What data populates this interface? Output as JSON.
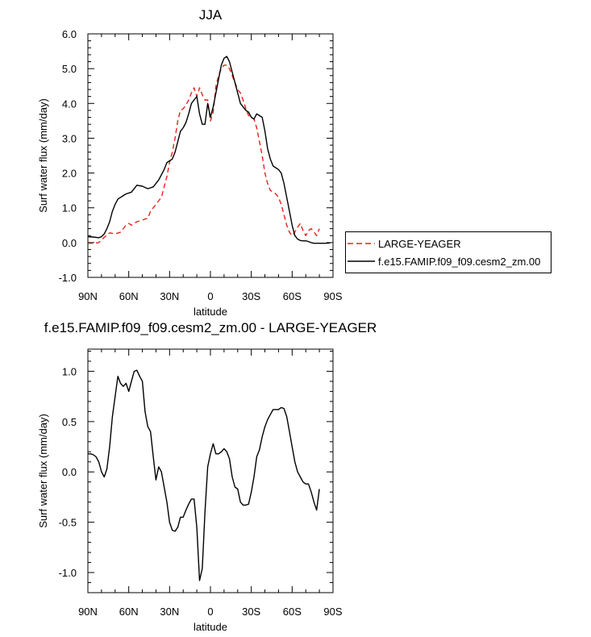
{
  "chart_data": [
    {
      "type": "line",
      "title": "JJA",
      "xlabel": "latitude",
      "ylabel": "Surf water flux (mm/day)",
      "xlim": [
        90,
        -90
      ],
      "ylim": [
        -1.0,
        6.0
      ],
      "x_ticks": [
        90,
        60,
        30,
        0,
        -30,
        -60,
        -90
      ],
      "x_tick_labels": [
        "90N",
        "60N",
        "30N",
        "0",
        "30S",
        "60S",
        "90S"
      ],
      "y_ticks": [
        -1.0,
        0.0,
        1.0,
        2.0,
        3.0,
        4.0,
        5.0,
        6.0
      ],
      "y_tick_labels": [
        "-1.0",
        "0.0",
        "1.0",
        "2.0",
        "3.0",
        "4.0",
        "5.0",
        "6.0"
      ],
      "legend": "right",
      "series": [
        {
          "name": "LARGE-YEAGER",
          "color": "#e8201a",
          "dash": "dashed",
          "x": [
            90,
            86,
            82,
            78,
            74,
            70,
            66,
            62,
            60,
            58,
            54,
            50,
            46,
            44,
            40,
            36,
            32,
            30,
            28,
            26,
            24,
            22,
            20,
            18,
            16,
            14,
            12,
            10,
            8,
            6,
            4,
            2,
            0,
            -2,
            -4,
            -6,
            -8,
            -10,
            -12,
            -14,
            -16,
            -18,
            -20,
            -22,
            -24,
            -26,
            -28,
            -30,
            -32,
            -34,
            -36,
            -38,
            -40,
            -42,
            -44,
            -46,
            -48,
            -50,
            -52,
            -54,
            -56,
            -58,
            -60,
            -62,
            -64,
            -66,
            -68,
            -70,
            -72,
            -74,
            -76,
            -78,
            -80
          ],
          "y": [
            -0.02,
            -0.02,
            0.0,
            0.15,
            0.28,
            0.25,
            0.3,
            0.5,
            0.55,
            0.5,
            0.6,
            0.65,
            0.7,
            0.9,
            1.1,
            1.3,
            1.9,
            2.3,
            2.6,
            3.0,
            3.5,
            3.8,
            3.85,
            3.95,
            4.1,
            4.3,
            4.45,
            4.2,
            4.45,
            4.25,
            4.1,
            4.1,
            3.5,
            3.75,
            4.5,
            4.8,
            5.0,
            5.1,
            5.1,
            5.0,
            4.8,
            4.6,
            4.4,
            4.3,
            4.1,
            3.85,
            3.65,
            3.6,
            3.55,
            3.3,
            2.9,
            2.5,
            2.0,
            1.7,
            1.5,
            1.45,
            1.4,
            1.3,
            1.1,
            0.8,
            0.5,
            0.3,
            0.2,
            0.3,
            0.45,
            0.55,
            0.35,
            0.2,
            0.35,
            0.4,
            0.3,
            0.2,
            0.4
          ]
        },
        {
          "name": "f.e15.FAMIP.f09_f09.cesm2_zm.00",
          "color": "#000000",
          "dash": "solid",
          "x": [
            90,
            86,
            82,
            80,
            78,
            76,
            74,
            72,
            70,
            68,
            66,
            64,
            62,
            58,
            54,
            50,
            46,
            42,
            38,
            34,
            32,
            30,
            28,
            26,
            24,
            22,
            20,
            18,
            16,
            14,
            12,
            10,
            8,
            6,
            4,
            2,
            0,
            -2,
            -4,
            -6,
            -8,
            -10,
            -12,
            -14,
            -16,
            -18,
            -20,
            -22,
            -24,
            -26,
            -28,
            -30,
            -32,
            -34,
            -36,
            -38,
            -40,
            -42,
            -44,
            -46,
            -48,
            -50,
            -52,
            -54,
            -56,
            -58,
            -60,
            -62,
            -64,
            -66,
            -68,
            -70,
            -72,
            -74,
            -76,
            -78,
            -80,
            -84,
            -88
          ],
          "y": [
            0.17,
            0.16,
            0.14,
            0.17,
            0.25,
            0.4,
            0.6,
            0.9,
            1.1,
            1.25,
            1.3,
            1.35,
            1.4,
            1.45,
            1.65,
            1.62,
            1.55,
            1.6,
            1.8,
            2.1,
            2.3,
            2.35,
            2.4,
            2.6,
            2.9,
            3.2,
            3.3,
            3.45,
            3.7,
            4.0,
            4.1,
            4.2,
            3.7,
            3.4,
            3.4,
            4.0,
            3.6,
            3.9,
            4.3,
            4.7,
            5.1,
            5.3,
            5.35,
            5.2,
            4.9,
            4.6,
            4.3,
            4.0,
            3.9,
            3.8,
            3.75,
            3.6,
            3.55,
            3.7,
            3.65,
            3.6,
            3.2,
            2.7,
            2.4,
            2.2,
            2.15,
            2.1,
            2.0,
            1.7,
            1.3,
            0.9,
            0.5,
            0.2,
            0.1,
            0.06,
            0.05,
            0.05,
            0.03,
            0.0,
            -0.02,
            -0.02,
            -0.02,
            -0.02,
            -0.01
          ]
        }
      ]
    },
    {
      "type": "line",
      "title": "f.e15.FAMIP.f09_f09.cesm2_zm.00 - LARGE-YEAGER",
      "xlabel": "latitude",
      "ylabel": "Surf water flux (mm/day)",
      "xlim": [
        90,
        -90
      ],
      "ylim": [
        -1.2,
        1.22
      ],
      "x_ticks": [
        90,
        60,
        30,
        0,
        -30,
        -60,
        -90
      ],
      "x_tick_labels": [
        "90N",
        "60N",
        "30N",
        "0",
        "30S",
        "60S",
        "90S"
      ],
      "y_ticks": [
        -1.0,
        -0.5,
        0.0,
        0.5,
        1.0
      ],
      "y_tick_labels": [
        "-1.0",
        "-0.5",
        "0.0",
        "0.5",
        "1.0"
      ],
      "series": [
        {
          "name": "f.e15.FAMIP.f09_f09.cesm2_zm.00 - LARGE-YEAGER",
          "color": "#000000",
          "dash": "solid",
          "x": [
            90,
            88,
            86,
            84,
            82,
            80,
            78,
            76,
            74,
            72,
            70,
            68,
            66,
            64,
            62,
            60,
            58,
            56,
            54,
            52,
            50,
            48,
            46,
            44,
            42,
            40,
            38,
            36,
            34,
            32,
            30,
            28,
            26,
            24,
            22,
            20,
            18,
            16,
            14,
            12,
            10,
            8,
            6,
            4,
            2,
            0,
            -2,
            -4,
            -6,
            -8,
            -10,
            -12,
            -14,
            -16,
            -18,
            -20,
            -22,
            -24,
            -26,
            -28,
            -30,
            -32,
            -34,
            -36,
            -38,
            -40,
            -42,
            -44,
            -46,
            -48,
            -50,
            -52,
            -54,
            -56,
            -58,
            -60,
            -62,
            -64,
            -66,
            -68,
            -70,
            -72,
            -74,
            -76,
            -78,
            -80
          ],
          "y": [
            0.18,
            0.18,
            0.17,
            0.15,
            0.1,
            0.0,
            -0.05,
            0.03,
            0.25,
            0.55,
            0.75,
            0.95,
            0.88,
            0.85,
            0.88,
            0.8,
            0.9,
            1.0,
            1.01,
            0.95,
            0.9,
            0.6,
            0.45,
            0.4,
            0.15,
            -0.08,
            0.05,
            0.0,
            -0.15,
            -0.3,
            -0.5,
            -0.58,
            -0.59,
            -0.55,
            -0.45,
            -0.45,
            -0.38,
            -0.32,
            -0.27,
            -0.27,
            -0.55,
            -1.08,
            -0.96,
            -0.4,
            0.05,
            0.18,
            0.28,
            0.18,
            0.18,
            0.2,
            0.23,
            0.2,
            0.13,
            -0.05,
            -0.15,
            -0.17,
            -0.3,
            -0.33,
            -0.33,
            -0.32,
            -0.2,
            -0.05,
            0.15,
            0.22,
            0.35,
            0.45,
            0.52,
            0.57,
            0.62,
            0.62,
            0.62,
            0.64,
            0.63,
            0.55,
            0.4,
            0.25,
            0.1,
            0.0,
            -0.05,
            -0.1,
            -0.12,
            -0.12,
            -0.2,
            -0.3,
            -0.38,
            -0.17
          ]
        }
      ]
    }
  ]
}
